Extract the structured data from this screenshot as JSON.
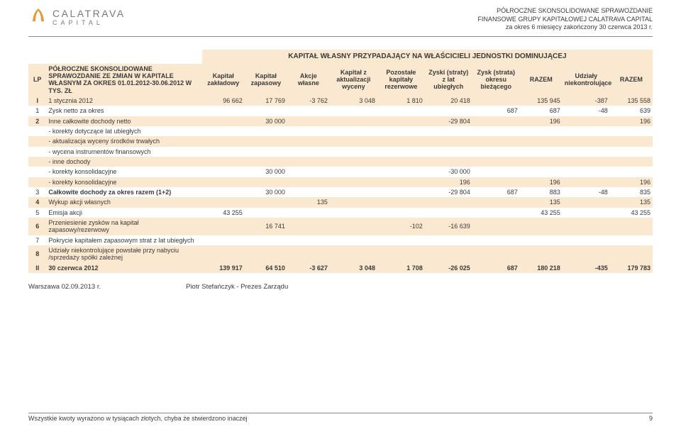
{
  "header": {
    "logo_text": "CALATRAVA",
    "logo_sub": "CAPITAL",
    "right1": "PÓŁROCZNE SKONSOLIDOWANE SPRAWOZDANIE",
    "right2": "FINANSOWE GRUPY KAPITAŁOWEJ CALATRAVA CAPITAL",
    "right3": "za okres 6 miesięcy zakończony 30 czerwca 2013 r.",
    "logo_color": "#e39a3a"
  },
  "title": "KAPITAŁ WŁASNY PRZYPADAJĄCY NA WŁAŚCICIELI JEDNOSTKI DOMINUJĄCEJ",
  "columns": {
    "lp": "LP",
    "desc": "PÓŁROCZNE SKONSOLIDOWANE SPRAWOZDANIE ZE ZMIAN W KAPITALE WŁASNYM ZA OKRES 01.01.2012-30.06.2012 W TYS. ZŁ",
    "c1": "Kapitał zakładowy",
    "c2": "Kapitał zapasowy",
    "c3": "Akcje własne",
    "c4": "Kapitał z aktualizacji wyceny",
    "c5": "Pozostałe kapitały rezerwowe",
    "c6": "Zyski (straty) z lat ubiegłych",
    "c7": "Zysk (strata) okresu bieżącego",
    "c8": "RAZEM",
    "c9": "Udziały niekontrolujące",
    "c10": "RAZEM"
  },
  "rows": [
    {
      "band": true,
      "lp": "I",
      "lbl": "1 stycznia 2012",
      "c1": "96 662",
      "c2": "17 769",
      "c3": "-3 762",
      "c4": "3 048",
      "c5": "1 810",
      "c6": "20 418",
      "c7": "",
      "c8": "135 945",
      "c9": "-387",
      "c10": "135 558"
    },
    {
      "band": false,
      "lp": "1",
      "lbl": "Zysk netto za okres",
      "c1": "",
      "c2": "",
      "c3": "",
      "c4": "",
      "c5": "",
      "c6": "",
      "c7": "687",
      "c8": "687",
      "c9": "-48",
      "c10": "639"
    },
    {
      "band": true,
      "lp": "2",
      "lbl": "Inne całkowite dochody netto",
      "c1": "",
      "c2": "30 000",
      "c3": "",
      "c4": "",
      "c5": "",
      "c6": "-29 804",
      "c7": "",
      "c8": "196",
      "c9": "",
      "c10": "196"
    },
    {
      "band": false,
      "lp": "",
      "lbl": "- korekty dotyczące lat ubiegłych",
      "c1": "",
      "c2": "",
      "c3": "",
      "c4": "",
      "c5": "",
      "c6": "",
      "c7": "",
      "c8": "",
      "c9": "",
      "c10": ""
    },
    {
      "band": true,
      "lp": "",
      "lbl": "- aktualizacja wyceny środków trwałych",
      "c1": "",
      "c2": "",
      "c3": "",
      "c4": "",
      "c5": "",
      "c6": "",
      "c7": "",
      "c8": "",
      "c9": "",
      "c10": ""
    },
    {
      "band": false,
      "lp": "",
      "lbl": "- wycena instrumentów finansowych",
      "c1": "",
      "c2": "",
      "c3": "",
      "c4": "",
      "c5": "",
      "c6": "",
      "c7": "",
      "c8": "",
      "c9": "",
      "c10": ""
    },
    {
      "band": true,
      "lp": "",
      "lbl": "- inne dochody",
      "c1": "",
      "c2": "",
      "c3": "",
      "c4": "",
      "c5": "",
      "c6": "",
      "c7": "",
      "c8": "",
      "c9": "",
      "c10": ""
    },
    {
      "band": false,
      "lp": "",
      "lbl": "- korekty konsolidacyjne",
      "c1": "",
      "c2": "30 000",
      "c3": "",
      "c4": "",
      "c5": "",
      "c6": "-30 000",
      "c7": "",
      "c8": "",
      "c9": "",
      "c10": ""
    },
    {
      "band": true,
      "lp": "",
      "lbl": "- korekty konsolidacyjne",
      "c1": "",
      "c2": "",
      "c3": "",
      "c4": "",
      "c5": "",
      "c6": "196",
      "c7": "",
      "c8": "196",
      "c9": "",
      "c10": "196"
    },
    {
      "band": false,
      "lp": "3",
      "lbl": "Całkowite dochody za okres razem (1+2)",
      "bold": true,
      "c1": "",
      "c2": "30 000",
      "c3": "",
      "c4": "",
      "c5": "",
      "c6": "-29 804",
      "c7": "687",
      "c8": "883",
      "c9": "-48",
      "c10": "835"
    },
    {
      "band": true,
      "lp": "4",
      "lbl": "Wykup akcji własnych",
      "c1": "",
      "c2": "",
      "c3": "135",
      "c4": "",
      "c5": "",
      "c6": "",
      "c7": "",
      "c8": "135",
      "c9": "",
      "c10": "135"
    },
    {
      "band": false,
      "lp": "5",
      "lbl": "Emisja akcji",
      "c1": "43 255",
      "c2": "",
      "c3": "",
      "c4": "",
      "c5": "",
      "c6": "",
      "c7": "",
      "c8": "43 255",
      "c9": "",
      "c10": "43 255"
    },
    {
      "band": true,
      "lp": "6",
      "lbl": "Przeniesienie zysków na kapitał zapasowy/rezerwowy",
      "c1": "",
      "c2": "16 741",
      "c3": "",
      "c4": "",
      "c5": "-102",
      "c6": "-16 639",
      "c7": "",
      "c8": "",
      "c9": "",
      "c10": ""
    },
    {
      "band": false,
      "lp": "7",
      "lbl": "Pokrycie kapitałem zapasowym strat z lat ubiegłych",
      "c1": "",
      "c2": "",
      "c3": "",
      "c4": "",
      "c5": "",
      "c6": "",
      "c7": "",
      "c8": "",
      "c9": "",
      "c10": ""
    },
    {
      "band": true,
      "lp": "8",
      "lbl": "Udziały niekontrolujące powstałe przy nabyciu /sprzedaży spółki zależnej",
      "c1": "",
      "c2": "",
      "c3": "",
      "c4": "",
      "c5": "",
      "c6": "",
      "c7": "",
      "c8": "",
      "c9": "",
      "c10": ""
    },
    {
      "sum": true,
      "lp": "II",
      "lbl": "30 czerwca 2012",
      "c1": "139 917",
      "c2": "64 510",
      "c3": "-3 627",
      "c4": "3 048",
      "c5": "1 708",
      "c6": "-26 025",
      "c7": "687",
      "c8": "180 218",
      "c9": "-435",
      "c10": "179 783"
    }
  ],
  "signature": {
    "place_date": "Warszawa 02.09.2013 r.",
    "signer": "Piotr Stefańczyk - Prezes Zarządu"
  },
  "footer": {
    "note": "Wszystkie kwoty wyrażono w tysiącach złotych, chyba że stwierdzono inaczej",
    "page": "9"
  },
  "colors": {
    "band": "#fbe8d0",
    "text": "#3a3a3a"
  }
}
